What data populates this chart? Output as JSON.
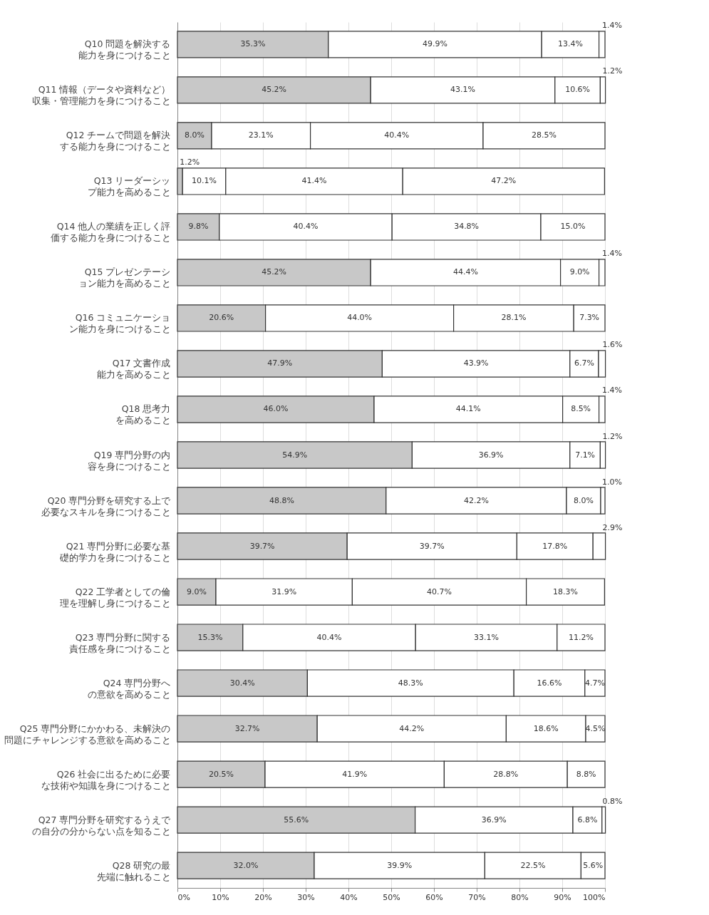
{
  "chart_data": {
    "type": "bar",
    "orientation": "horizontal",
    "stacked": true,
    "grid": "x",
    "xlim": [
      0,
      100
    ],
    "xticks": [
      {
        "value": 0,
        "label": "0%"
      },
      {
        "value": 10,
        "label": "10%"
      },
      {
        "value": 20,
        "label": "20%"
      },
      {
        "value": 30,
        "label": "30%"
      },
      {
        "value": 40,
        "label": "40%"
      },
      {
        "value": 50,
        "label": "50%"
      },
      {
        "value": 60,
        "label": "60%"
      },
      {
        "value": 70,
        "label": "70%"
      },
      {
        "value": 80,
        "label": "80%"
      },
      {
        "value": 90,
        "label": "90%"
      },
      {
        "value": 100,
        "label": "100%"
      }
    ],
    "categories": [
      "Q10 問題を解決する能力を身につけること",
      "Q11 情報（データや資料など）収集・管理能力を身につけること",
      "Q12 チームで問題を解決する能力を身につけること",
      "Q13 リーダーシップ能力を高めること",
      "Q14 他人の業績を正しく評価する能力を身につけること",
      "Q15 プレゼンテーション能力を高めること",
      "Q16 コミュニケーション能力を身につけること",
      "Q17 文書作成能力を高めること",
      "Q18 思考力を高めること",
      "Q19 専門分野の内容を身につけること",
      "Q20 専門分野を研究する上で必要なスキルを身につけること",
      "Q21 専門分野に必要な基礎的学力を身につけること",
      "Q22 工学者としての倫理を理解し身につけること",
      "Q23 専門分野に関する責任感を身につけること",
      "Q24 専門分野への意欲を高めること",
      "Q25 専門分野にかかわる、未解決の問題にチャレンジする意欲を高めること",
      "Q26 社会に出るために必要な技術や知識を身につけること",
      "Q27 専門分野を研究するうえでの自分の分からない点を知ること",
      "Q28 研究の最先端に触れること"
    ],
    "series": [
      {
        "color": "#c8c8c8",
        "values": [
          35.3,
          45.2,
          8.0,
          1.2,
          9.8,
          45.2,
          20.6,
          47.9,
          46.0,
          54.9,
          48.8,
          39.7,
          9.0,
          15.3,
          30.4,
          32.7,
          20.5,
          55.6,
          32.0
        ],
        "value_labels": [
          "35.3%",
          "45.2%",
          "8.0%",
          "1.2%",
          "9.8%",
          "45.2%",
          "20.6%",
          "47.9%",
          "46.0%",
          "54.9%",
          "48.8%",
          "39.7%",
          "9.0%",
          "15.3%",
          "30.4%",
          "32.7%",
          "20.5%",
          "55.6%",
          "32.0%"
        ]
      },
      {
        "color": "#ffffff",
        "values": [
          49.9,
          43.1,
          23.1,
          10.1,
          40.4,
          44.4,
          44.0,
          43.9,
          44.1,
          36.9,
          42.2,
          39.7,
          31.9,
          40.4,
          48.3,
          44.2,
          41.9,
          36.9,
          39.9
        ],
        "value_labels": [
          "49.9%",
          "43.1%",
          "23.1%",
          "10.1%",
          "40.4%",
          "44.4%",
          "44.0%",
          "43.9%",
          "44.1%",
          "36.9%",
          "42.2%",
          "39.7%",
          "31.9%",
          "40.4%",
          "48.3%",
          "44.2%",
          "41.9%",
          "36.9%",
          "39.9%"
        ]
      },
      {
        "color": "#ffffff",
        "values": [
          13.4,
          10.6,
          40.4,
          41.4,
          34.8,
          9.0,
          28.1,
          6.7,
          8.5,
          7.1,
          8.0,
          17.8,
          40.7,
          33.1,
          16.6,
          18.6,
          28.8,
          6.8,
          22.5
        ],
        "value_labels": [
          "13.4%",
          "10.6%",
          "40.4%",
          "41.4%",
          "34.8%",
          "9.0%",
          "28.1%",
          "6.7%",
          "8.5%",
          "7.1%",
          "8.0%",
          "17.8%",
          "40.7%",
          "33.1%",
          "16.6%",
          "18.6%",
          "28.8%",
          "6.8%",
          "22.5%"
        ]
      },
      {
        "color": "#ffffff",
        "values": [
          1.4,
          1.2,
          28.5,
          47.2,
          15.0,
          1.4,
          7.3,
          1.6,
          1.4,
          1.2,
          1.0,
          2.9,
          18.3,
          11.2,
          4.7,
          4.5,
          8.8,
          0.8,
          5.6
        ],
        "value_labels": [
          "1.4%",
          "1.2%",
          "28.5%",
          "47.2%",
          "15.0%",
          "1.4%",
          "7.3%",
          "1.6%",
          "1.4%",
          "1.2%",
          "1.0%",
          "2.9%",
          "18.3%",
          "11.2%",
          "4.7%",
          "4.5%",
          "8.8%",
          "0.8%",
          "5.6%"
        ]
      }
    ]
  }
}
